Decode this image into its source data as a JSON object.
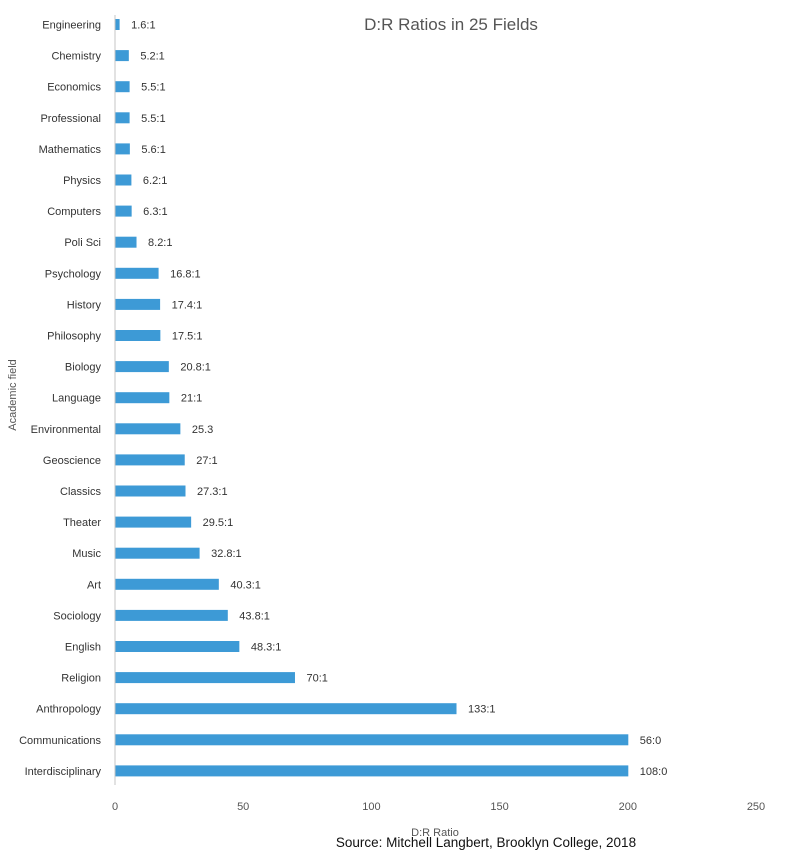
{
  "chart_data": {
    "type": "bar",
    "orientation": "horizontal",
    "title": "D:R Ratios in 25 Fields",
    "xlabel": "D:R Ratio",
    "ylabel": "Academic field",
    "xlim": [
      0,
      250
    ],
    "xticks": [
      0,
      50,
      100,
      150,
      200,
      250
    ],
    "grid": false,
    "bar_color": "#3d9ad6",
    "categories": [
      "Engineering",
      "Chemistry",
      "Economics",
      "Professional",
      "Mathematics",
      "Physics",
      "Computers",
      "Poli Sci",
      "Psychology",
      "History",
      "Philosophy",
      "Biology",
      "Language",
      "Environmental",
      "Geoscience",
      "Classics",
      "Theater",
      "Music",
      "Art",
      "Sociology",
      "English",
      "Religion",
      "Anthropology",
      "Communications",
      "Interdisciplinary"
    ],
    "values": [
      1.6,
      5.2,
      5.5,
      5.5,
      5.6,
      6.2,
      6.3,
      8.2,
      16.8,
      17.4,
      17.5,
      20.8,
      21,
      25.3,
      27,
      27.3,
      29.5,
      32.8,
      40.3,
      43.8,
      48.3,
      70,
      133,
      200,
      200
    ],
    "data_labels": [
      "1.6:1",
      "5.2:1",
      "5.5:1",
      "5.5:1",
      "5.6:1",
      "6.2:1",
      "6.3:1",
      "8.2:1",
      "16.8:1",
      "17.4:1",
      "17.5:1",
      "20.8:1",
      "21:1",
      "25.3",
      "27:1",
      "27.3:1",
      "29.5:1",
      "32.8:1",
      "40.3:1",
      "43.8:1",
      "48.3:1",
      "70:1",
      "133:1",
      "56:0",
      "108:0"
    ]
  },
  "source": "Source: Mitchell Langbert, Brooklyn College, 2018"
}
